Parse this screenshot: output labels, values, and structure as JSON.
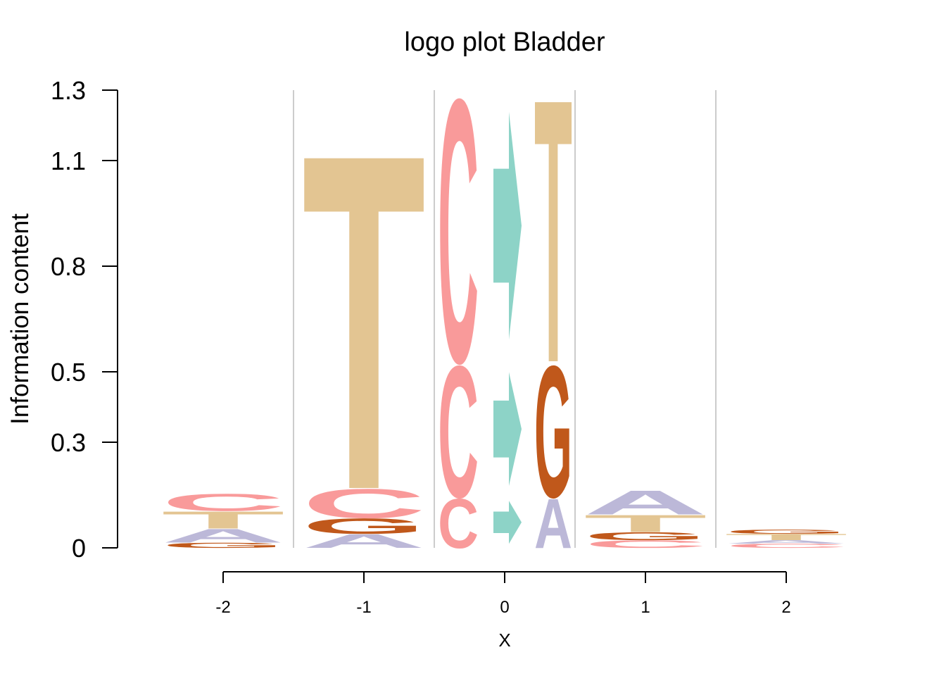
{
  "chart_data": {
    "type": "logo",
    "title": "logo plot Bladder",
    "xlabel": "X",
    "ylabel": "Information content",
    "ylim": [
      0,
      1.3
    ],
    "yticks": [
      0,
      0.3,
      0.5,
      0.8,
      1.1,
      1.3
    ],
    "xticks": [
      -2,
      -1,
      0,
      1,
      2
    ],
    "colors": {
      "A": "#bcb8d8",
      "C": "#f99a9a",
      "G": "#c0581b",
      "T": "#e3c592",
      "arrow": "#8dd3c7"
    },
    "positions": [
      {
        "x": -2,
        "stack": [
          {
            "letter": "G",
            "height": 0.015
          },
          {
            "letter": "A",
            "height": 0.04
          },
          {
            "letter": "T",
            "height": 0.05
          },
          {
            "letter": "C",
            "height": 0.05
          }
        ]
      },
      {
        "x": -1,
        "stack": [
          {
            "letter": "A",
            "height": 0.04
          },
          {
            "letter": "G",
            "height": 0.045
          },
          {
            "letter": "C",
            "height": 0.085
          },
          {
            "letter": "T",
            "height": 0.98
          }
        ]
      },
      {
        "x": 0,
        "substitutions": [
          {
            "ref": "C",
            "alt": "A",
            "height": 0.145
          },
          {
            "ref": "C",
            "alt": "G",
            "height": 0.385
          },
          {
            "ref": "C",
            "alt": "T",
            "height": 0.77
          }
        ]
      },
      {
        "x": 1,
        "stack": [
          {
            "letter": "C",
            "height": 0.022
          },
          {
            "letter": "G",
            "height": 0.023
          },
          {
            "letter": "T",
            "height": 0.05
          },
          {
            "letter": "A",
            "height": 0.07
          }
        ]
      },
      {
        "x": 2,
        "stack": [
          {
            "letter": "C",
            "height": 0.012
          },
          {
            "letter": "A",
            "height": 0.01
          },
          {
            "letter": "T",
            "height": 0.018
          },
          {
            "letter": "G",
            "height": 0.012
          }
        ]
      }
    ]
  }
}
